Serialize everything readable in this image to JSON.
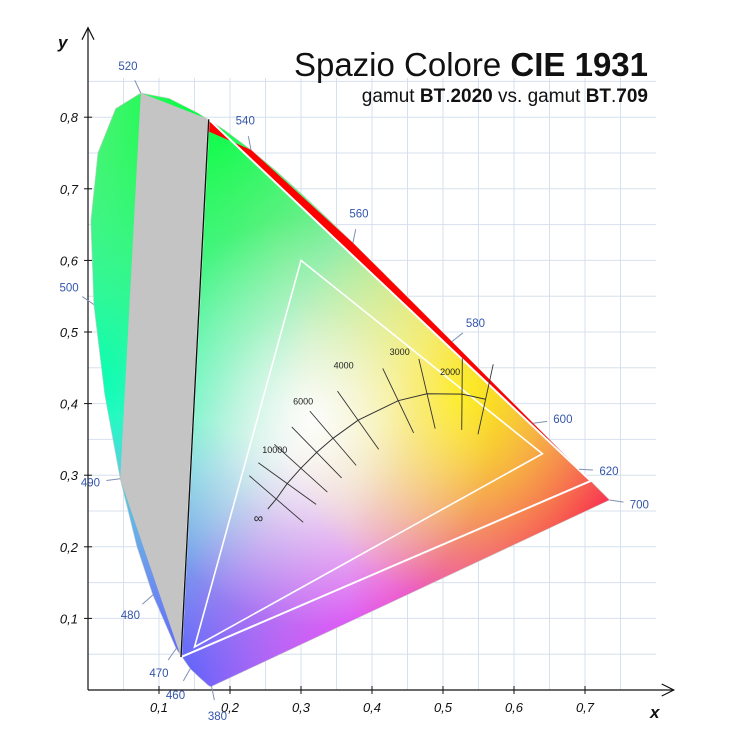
{
  "chart_data": {
    "type": "scatter",
    "title_parts": [
      {
        "text": "Spazio Colore ",
        "bold": false
      },
      {
        "text": "CIE 1931",
        "bold": true
      }
    ],
    "subtitle_parts": [
      {
        "text": "gamut ",
        "bold": false
      },
      {
        "text": "BT",
        "bold": true
      },
      {
        "text": ".",
        "bold": false
      },
      {
        "text": "2020",
        "bold": true
      },
      {
        "text": " vs. gamut ",
        "bold": false
      },
      {
        "text": "BT",
        "bold": true
      },
      {
        "text": ".",
        "bold": false
      },
      {
        "text": "709",
        "bold": true
      }
    ],
    "xlabel": "x",
    "ylabel": "y",
    "xlim": [
      0,
      0.8
    ],
    "ylim": [
      0,
      0.9
    ],
    "grid": true,
    "x_ticks": [
      {
        "value": 0.1,
        "label": "0,1"
      },
      {
        "value": 0.2,
        "label": "0,2"
      },
      {
        "value": 0.3,
        "label": "0,3"
      },
      {
        "value": 0.4,
        "label": "0,4"
      },
      {
        "value": 0.5,
        "label": "0,5"
      },
      {
        "value": 0.6,
        "label": "0,6"
      },
      {
        "value": 0.7,
        "label": "0,7"
      }
    ],
    "y_ticks": [
      {
        "value": 0.1,
        "label": "0,1"
      },
      {
        "value": 0.2,
        "label": "0,2"
      },
      {
        "value": 0.3,
        "label": "0,3"
      },
      {
        "value": 0.4,
        "label": "0,4"
      },
      {
        "value": 0.5,
        "label": "0,5"
      },
      {
        "value": 0.6,
        "label": "0,6"
      },
      {
        "value": 0.7,
        "label": "0,7"
      },
      {
        "value": 0.8,
        "label": "0,8"
      }
    ],
    "spectral_locus": [
      [
        0.1741,
        0.005
      ],
      [
        0.1736,
        0.0049
      ],
      [
        0.1738,
        0.0049
      ],
      [
        0.1733,
        0.0048
      ],
      [
        0.1726,
        0.0048
      ],
      [
        0.1714,
        0.0051
      ],
      [
        0.1689,
        0.0069
      ],
      [
        0.1644,
        0.0109
      ],
      [
        0.1566,
        0.0177
      ],
      [
        0.144,
        0.0297
      ],
      [
        0.1241,
        0.0578
      ],
      [
        0.0913,
        0.1327
      ],
      [
        0.0687,
        0.2007
      ],
      [
        0.0454,
        0.295
      ],
      [
        0.0235,
        0.4127
      ],
      [
        0.0082,
        0.5384
      ],
      [
        0.0039,
        0.6548
      ],
      [
        0.0139,
        0.7502
      ],
      [
        0.0389,
        0.812
      ],
      [
        0.0743,
        0.8338
      ],
      [
        0.1142,
        0.8262
      ],
      [
        0.1547,
        0.8059
      ],
      [
        0.1929,
        0.7816
      ],
      [
        0.2296,
        0.7543
      ],
      [
        0.2658,
        0.7243
      ],
      [
        0.3016,
        0.6923
      ],
      [
        0.3373,
        0.6589
      ],
      [
        0.3731,
        0.6245
      ],
      [
        0.4087,
        0.5896
      ],
      [
        0.4441,
        0.5547
      ],
      [
        0.4788,
        0.5202
      ],
      [
        0.5125,
        0.4866
      ],
      [
        0.5448,
        0.4544
      ],
      [
        0.5752,
        0.4242
      ],
      [
        0.6029,
        0.3965
      ],
      [
        0.627,
        0.3725
      ],
      [
        0.6482,
        0.3514
      ],
      [
        0.6658,
        0.334
      ],
      [
        0.6801,
        0.3197
      ],
      [
        0.6915,
        0.3083
      ],
      [
        0.7006,
        0.2993
      ],
      [
        0.7079,
        0.292
      ],
      [
        0.714,
        0.2859
      ],
      [
        0.719,
        0.2809
      ],
      [
        0.723,
        0.277
      ],
      [
        0.726,
        0.274
      ],
      [
        0.7283,
        0.2717
      ],
      [
        0.73,
        0.27
      ],
      [
        0.7311,
        0.2689
      ],
      [
        0.732,
        0.268
      ],
      [
        0.7347,
        0.2653
      ]
    ],
    "wavelength_labels": [
      {
        "label": "380",
        "x": 0.1741,
        "y": 0.005
      },
      {
        "label": "460",
        "x": 0.144,
        "y": 0.0297
      },
      {
        "label": "470",
        "x": 0.1241,
        "y": 0.0578
      },
      {
        "label": "480",
        "x": 0.0913,
        "y": 0.1327
      },
      {
        "label": "490",
        "x": 0.0454,
        "y": 0.295
      },
      {
        "label": "500",
        "x": 0.0082,
        "y": 0.5384
      },
      {
        "label": "520",
        "x": 0.0743,
        "y": 0.8338
      },
      {
        "label": "540",
        "x": 0.2296,
        "y": 0.7543
      },
      {
        "label": "560",
        "x": 0.3731,
        "y": 0.6245
      },
      {
        "label": "580",
        "x": 0.5125,
        "y": 0.4866
      },
      {
        "label": "600",
        "x": 0.627,
        "y": 0.3725
      },
      {
        "label": "620",
        "x": 0.6915,
        "y": 0.3083
      },
      {
        "label": "700",
        "x": 0.7347,
        "y": 0.2653
      }
    ],
    "gamuts": [
      {
        "name": "BT.2020",
        "points": [
          [
            0.708,
            0.292
          ],
          [
            0.17,
            0.797
          ],
          [
            0.131,
            0.046
          ]
        ]
      },
      {
        "name": "BT.709",
        "points": [
          [
            0.64,
            0.33
          ],
          [
            0.3,
            0.6
          ],
          [
            0.15,
            0.06
          ]
        ]
      }
    ],
    "planckian_locus": [
      [
        0.2533,
        0.2528
      ],
      [
        0.2652,
        0.2667
      ],
      [
        0.2806,
        0.2883
      ],
      [
        0.2998,
        0.3098
      ],
      [
        0.3221,
        0.3318
      ],
      [
        0.3451,
        0.3516
      ],
      [
        0.3804,
        0.3768
      ],
      [
        0.4369,
        0.4041
      ],
      [
        0.4775,
        0.4137
      ],
      [
        0.5268,
        0.4133
      ],
      [
        0.56,
        0.406
      ]
    ],
    "cct_labels": [
      {
        "label": "∞",
        "x": 0.24,
        "y": 0.234
      },
      {
        "label": "10000",
        "x": 0.263,
        "y": 0.331
      },
      {
        "label": "6000",
        "x": 0.303,
        "y": 0.399
      },
      {
        "label": "4000",
        "x": 0.36,
        "y": 0.449
      },
      {
        "label": "3000",
        "x": 0.439,
        "y": 0.468
      },
      {
        "label": "2000",
        "x": 0.51,
        "y": 0.44
      }
    ]
  }
}
